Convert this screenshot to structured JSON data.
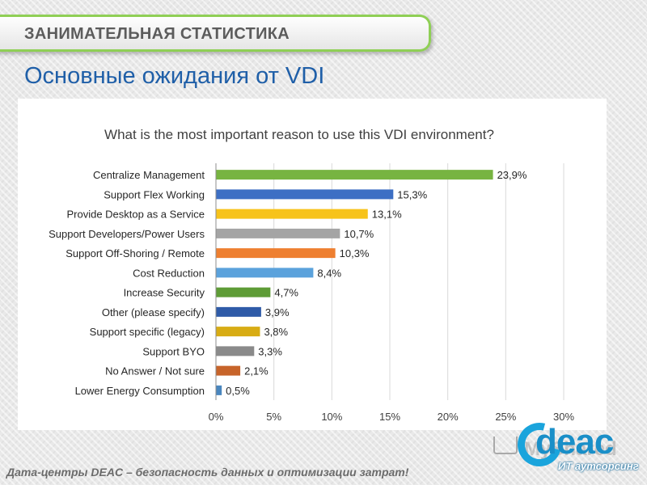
{
  "header": {
    "banner": "ЗАНИМАТЕЛЬНАЯ СТАТИСТИКА",
    "subtitle": "Основные ожидания от VDI"
  },
  "footer": {
    "text": "Дата-центры DEAC – безопасность данных и оптимизации затрат!"
  },
  "logo": {
    "name": "deac",
    "tagline": "ИТ аутсорсинг",
    "ghost_text": "MyShared"
  },
  "chart_data": {
    "type": "bar",
    "orientation": "horizontal",
    "title": "What is the most important reason to use this VDI environment?",
    "categories": [
      "Centralize Management",
      "Support Flex Working",
      "Provide Desktop as a Service",
      "Support Developers/Power Users",
      "Support Off-Shoring / Remote",
      "Cost Reduction",
      "Increase Security",
      "Other (please specify)",
      "Support specific (legacy)",
      "Support BYO",
      "No Answer / Not sure",
      "Lower Energy Consumption"
    ],
    "values": [
      23.9,
      15.3,
      13.1,
      10.7,
      10.3,
      8.4,
      4.7,
      3.9,
      3.8,
      3.3,
      2.1,
      0.5
    ],
    "data_labels": [
      "23,9%",
      "15,3%",
      "13,1%",
      "10,7%",
      "10,3%",
      "8,4%",
      "4,7%",
      "3,9%",
      "3,8%",
      "3,3%",
      "2,1%",
      "0,5%"
    ],
    "colors": [
      "#77b441",
      "#3d6fc4",
      "#f7c31a",
      "#a4a4a4",
      "#ee7f30",
      "#5ba2dc",
      "#5e9c36",
      "#2f5ba8",
      "#d8ac14",
      "#8a8a8a",
      "#c7642a",
      "#4a86be"
    ],
    "xlim": [
      0,
      30
    ],
    "xticks": [
      0,
      5,
      10,
      15,
      20,
      25,
      30
    ],
    "xtick_labels": [
      "0%",
      "5%",
      "10%",
      "15%",
      "20%",
      "25%",
      "30%"
    ],
    "grid": true,
    "legend": "none",
    "xlabel": "",
    "ylabel": ""
  }
}
